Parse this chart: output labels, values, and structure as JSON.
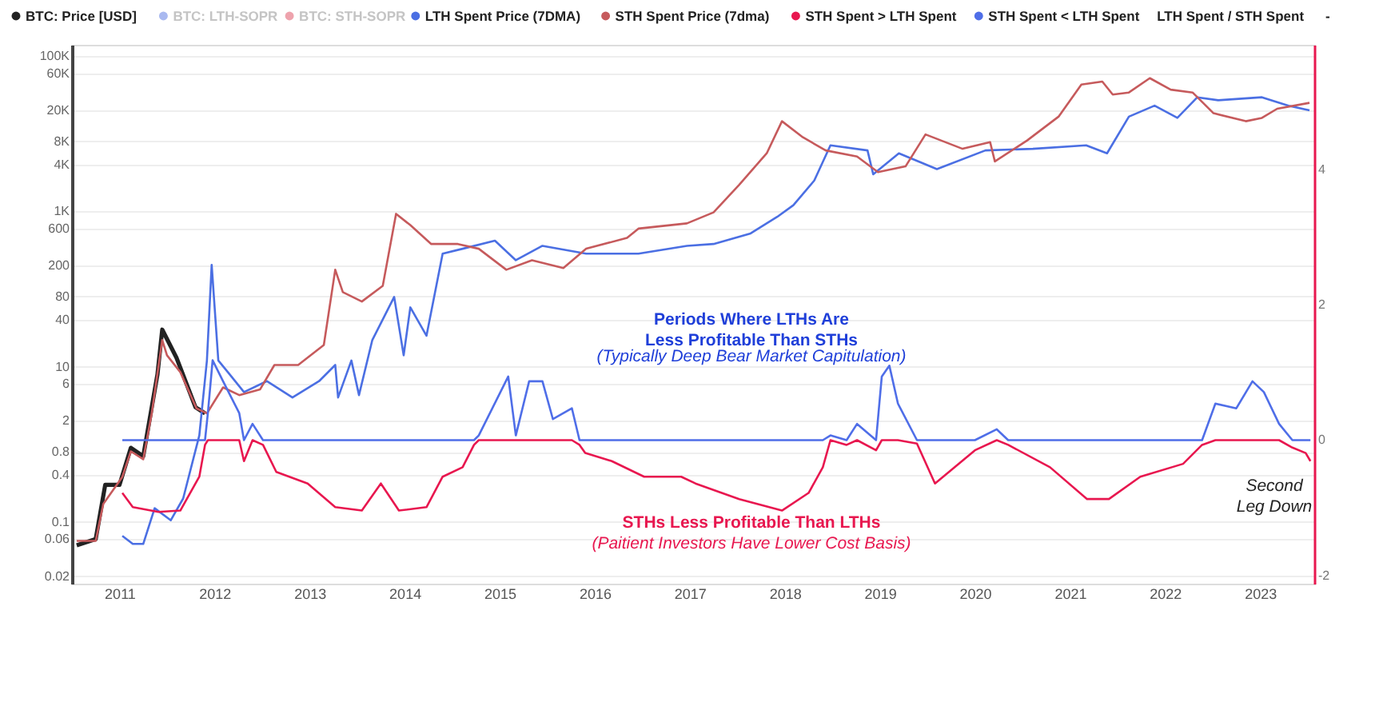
{
  "chart_data": {
    "type": "line",
    "legend": "top left",
    "grid": "y",
    "log": "y",
    "xlim": [
      2010.5,
      2023.57
    ],
    "xticks": [
      2011,
      2012,
      2013,
      2014,
      2015,
      2016,
      2017,
      2018,
      2019,
      2020,
      2021,
      2022,
      2023
    ],
    "ylim": [
      0.016,
      140000
    ],
    "yticks": [
      {
        "value": 0.02,
        "label": "0.02"
      },
      {
        "value": 0.06,
        "label": "0.06"
      },
      {
        "value": 0.1,
        "label": "0.1"
      },
      {
        "value": 0.4,
        "label": "0.4"
      },
      {
        "value": 0.8,
        "label": "0.8"
      },
      2,
      6,
      10,
      40,
      80,
      200,
      600,
      {
        "value": 1000,
        "label": "1K"
      },
      {
        "value": 4000,
        "label": "4K"
      },
      {
        "value": 8000,
        "label": "8K"
      },
      {
        "value": 20000,
        "label": "20K"
      },
      {
        "value": 60000,
        "label": "60K"
      },
      {
        "value": 100000,
        "label": "100K"
      }
    ],
    "y2lim": [
      -2.12,
      5.84
    ],
    "y2ticks": [
      -2,
      0,
      2,
      4
    ],
    "annotations": [
      "Periods Where LTHs Are\nLess Profitable Than STHs",
      "(Typically Deep Bear Market Capitulation)",
      "STHs Less Profitable Than LTHs",
      "(Paitient Investors Have Lower Cost Basis)",
      "Second\nLeg Down"
    ],
    "series": [
      {
        "name": "BTC: Price [USD]",
        "color": "#222222",
        "x": [
          2010.55,
          2010.75,
          2010.85,
          2011.0,
          2011.12,
          2011.25,
          2011.4,
          2011.45,
          2011.6,
          2011.8,
          2011.9
        ],
        "values": [
          0.05,
          0.06,
          0.3,
          0.3,
          0.9,
          0.7,
          8,
          30,
          13,
          3,
          2.5
        ]
      },
      {
        "name": "BTC: LTH-SOPR",
        "color": "#a9b9f0"
      },
      {
        "name": "BTC: STH-SOPR",
        "color": "#eea3ad"
      },
      {
        "name": "LTH Spent Price (7DMA)",
        "color": "#4b6fe3",
        "x": [
          2011.03,
          2011.14,
          2011.25,
          2011.37,
          2011.54,
          2011.67,
          2011.84,
          2011.92,
          2011.97,
          2012.04,
          2012.14,
          2012.31,
          2012.55,
          2012.82,
          2013.1,
          2013.27,
          2013.3,
          2013.44,
          2013.52,
          2013.66,
          2013.89,
          2013.99,
          2014.06,
          2014.23,
          2014.4,
          2014.61,
          2014.95,
          2015.17,
          2015.45,
          2015.91,
          2016.46,
          2016.97,
          2017.25,
          2017.64,
          2017.92,
          2018.09,
          2018.31,
          2018.48,
          2018.87,
          2018.93,
          2019.2,
          2019.6,
          2020.11,
          2020.61,
          2021.17,
          2021.39,
          2021.62,
          2021.89,
          2022.13,
          2022.34,
          2022.56,
          2023.02,
          2023.3,
          2023.52
        ],
        "values": [
          0.066,
          0.052,
          0.052,
          0.15,
          0.105,
          0.2,
          1.3,
          12,
          205,
          12,
          8.5,
          4.7,
          6.5,
          4,
          6.5,
          10.5,
          4,
          12,
          4.3,
          22,
          79,
          14,
          58,
          25,
          285,
          330,
          420,
          235,
          360,
          285,
          285,
          360,
          380,
          520,
          850,
          1200,
          2500,
          7100,
          6100,
          3000,
          5600,
          3500,
          6100,
          6400,
          7100,
          5600,
          16600,
          23000,
          16000,
          29500,
          27000,
          29500,
          23000,
          20000
        ]
      },
      {
        "name": "STH Spent Price (7dma)",
        "color": "#c65a5c",
        "x": [
          2010.55,
          2010.75,
          2010.83,
          2011.03,
          2011.12,
          2011.25,
          2011.34,
          2011.45,
          2011.5,
          2011.64,
          2011.81,
          2011.92,
          2012.09,
          2012.26,
          2012.48,
          2012.63,
          2012.88,
          2013.15,
          2013.27,
          2013.35,
          2013.55,
          2013.77,
          2013.91,
          2014.06,
          2014.28,
          2014.56,
          2014.78,
          2015.07,
          2015.34,
          2015.67,
          2015.91,
          2016.34,
          2016.46,
          2016.97,
          2017.25,
          2017.52,
          2017.81,
          2017.97,
          2018.19,
          2018.43,
          2018.76,
          2018.98,
          2019.27,
          2019.48,
          2019.87,
          2020.16,
          2020.21,
          2020.55,
          2020.88,
          2021.12,
          2021.34,
          2021.45,
          2021.62,
          2021.84,
          2022.06,
          2022.29,
          2022.51,
          2022.85,
          2023.02,
          2023.18,
          2023.52
        ],
        "values": [
          0.057,
          0.057,
          0.17,
          0.38,
          0.81,
          0.64,
          2.5,
          22,
          14,
          8.5,
          2.9,
          2.5,
          5.4,
          4.3,
          5.1,
          10.5,
          10.5,
          19,
          177,
          91,
          69,
          110,
          930,
          665,
          380,
          380,
          330,
          177,
          235,
          186,
          330,
          455,
          600,
          700,
          970,
          2200,
          5600,
          14500,
          9000,
          6100,
          5100,
          3200,
          3800,
          9800,
          6400,
          7800,
          4400,
          8200,
          16600,
          43000,
          47000,
          32000,
          34000,
          52000,
          37000,
          34000,
          18400,
          14500,
          16000,
          21000,
          25000
        ]
      },
      {
        "name": "STH Spent > LTH Spent",
        "color": "#e8174f",
        "axis": "y2",
        "x": [
          2011.03,
          2011.14,
          2011.41,
          2011.64,
          2011.84,
          2011.9,
          2011.93,
          2011.98,
          2012.09,
          2012.26,
          2012.31,
          2012.4,
          2012.51,
          2012.65,
          2012.98,
          2013.27,
          2013.55,
          2013.75,
          2013.94,
          2014.23,
          2014.4,
          2014.61,
          2014.73,
          2014.78,
          2015.09,
          2015.17,
          2015.31,
          2015.45,
          2015.56,
          2015.76,
          2015.84,
          2015.9,
          2016.18,
          2016.52,
          2016.91,
          2017.06,
          2017.52,
          2017.97,
          2018.25,
          2018.4,
          2018.48,
          2018.65,
          2018.76,
          2018.96,
          2019.02,
          2019.1,
          2019.19,
          2019.39,
          2019.58,
          2020.0,
          2020.23,
          2020.35,
          2020.79,
          2021.18,
          2021.41,
          2021.74,
          2022.19,
          2022.39,
          2022.53,
          2022.75,
          2022.92,
          2023.04,
          2023.2,
          2023.34,
          2023.48,
          2023.53
        ],
        "values": [
          -0.78,
          -0.99,
          -1.06,
          -1.04,
          -0.54,
          -0.07,
          0,
          0,
          0,
          0,
          -0.31,
          0,
          -0.07,
          -0.47,
          -0.64,
          -0.99,
          -1.04,
          -0.64,
          -1.04,
          -0.99,
          -0.54,
          -0.4,
          -0.07,
          0,
          0,
          0,
          0,
          0,
          0,
          0,
          -0.07,
          -0.19,
          -0.31,
          -0.54,
          -0.54,
          -0.64,
          -0.87,
          -1.04,
          -0.78,
          -0.4,
          0,
          -0.07,
          0,
          -0.15,
          0,
          0,
          0,
          -0.05,
          -0.64,
          -0.15,
          0,
          -0.07,
          -0.4,
          -0.87,
          -0.87,
          -0.54,
          -0.35,
          -0.07,
          0,
          0,
          0,
          0,
          0,
          -0.11,
          -0.19,
          -0.31
        ]
      },
      {
        "name": "STH Spent < LTH Spent",
        "color": "#4f6ee8",
        "axis": "y2",
        "x": [
          2011.03,
          2011.14,
          2011.41,
          2011.64,
          2011.84,
          2011.9,
          2011.93,
          2011.98,
          2012.09,
          2012.26,
          2012.31,
          2012.4,
          2012.51,
          2012.65,
          2012.98,
          2013.27,
          2013.55,
          2013.75,
          2013.94,
          2014.23,
          2014.4,
          2014.61,
          2014.73,
          2014.78,
          2015.09,
          2015.17,
          2015.31,
          2015.45,
          2015.56,
          2015.76,
          2015.84,
          2015.9,
          2016.18,
          2016.52,
          2016.91,
          2017.06,
          2017.52,
          2017.97,
          2018.25,
          2018.4,
          2018.48,
          2018.65,
          2018.76,
          2018.96,
          2019.02,
          2019.1,
          2019.19,
          2019.39,
          2019.58,
          2020.0,
          2020.23,
          2020.35,
          2020.79,
          2021.18,
          2021.41,
          2021.74,
          2022.19,
          2022.39,
          2022.53,
          2022.75,
          2022.92,
          2023.04,
          2023.2,
          2023.34,
          2023.48,
          2023.53
        ],
        "values": [
          0,
          0,
          0,
          0,
          0,
          0,
          0.4,
          1.18,
          0.87,
          0.4,
          0,
          0.24,
          0,
          0,
          0,
          0,
          0,
          0,
          0,
          0,
          0,
          0,
          0,
          0.07,
          0.94,
          0.07,
          0.87,
          0.87,
          0.31,
          0.47,
          0,
          0,
          0,
          0,
          0,
          0,
          0,
          0,
          0,
          0,
          0.07,
          0,
          0.24,
          0,
          0.94,
          1.1,
          0.54,
          0,
          0,
          0,
          0.16,
          0,
          0,
          0,
          0,
          0,
          0,
          0,
          0.54,
          0.47,
          0.87,
          0.71,
          0.24,
          0,
          0,
          0
        ]
      },
      {
        "name": "LTH Spent / STH Spent"
      },
      {
        "name": "-"
      }
    ]
  }
}
